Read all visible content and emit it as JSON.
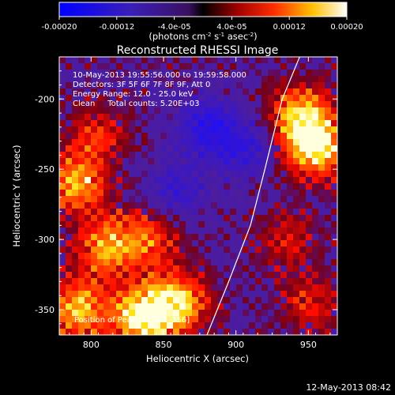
{
  "colorbar": {
    "tick_labels": [
      "-0.00020",
      "-0.00012",
      "-4.0e-05",
      "4.0e-05",
      "0.00012",
      "0.00020"
    ],
    "tick_values": [
      -0.0002,
      -0.00012,
      -4e-05,
      4e-05,
      0.00012,
      0.0002
    ],
    "range": [
      -0.0002,
      0.0002
    ],
    "units_base": "(photons cm",
    "units_sup1": "-2",
    "units_mid": " s",
    "units_sup2": "-1",
    "units_end": " asec",
    "units_sup3": "-2",
    "units_close": ")"
  },
  "chart_data": {
    "type": "heatmap",
    "title": "Reconstructed RHESSI Image",
    "xlabel": "Heliocentric X (arcsec)",
    "ylabel": "Heliocentric Y (arcsec)",
    "xlim": [
      778,
      970
    ],
    "ylim": [
      -368,
      -170
    ],
    "x_ticks": [
      800,
      850,
      900,
      950
    ],
    "y_ticks": [
      -350,
      -300,
      -250,
      -200
    ],
    "x_tick_labels": [
      "800",
      "850",
      "900",
      "950"
    ],
    "y_tick_labels": [
      "-350",
      "-300",
      "-250",
      "-200"
    ],
    "colormap": "blue-purple-red-yellow-white",
    "annotations": [
      "10-May-2013 19:55:56.000 to 19:59:58.000",
      "Detectors: 3F 5F 6F 7F 8F 9F, Att 0",
      "Energy Range: 12.0 - 25.0 keV",
      "Clean     Total counts: 5.20E+03"
    ],
    "peak_label": "Position of Peak = [776 -356]",
    "limb_curve": [
      [
        880,
        -368
      ],
      [
        895,
        -330
      ],
      [
        910,
        -290
      ],
      [
        920,
        -250
      ],
      [
        932,
        -200
      ],
      [
        944,
        -170
      ]
    ],
    "bright_regions": [
      {
        "x": 955,
        "y": -235,
        "intensity": 1.0
      },
      {
        "x": 945,
        "y": -210,
        "intensity": 0.8
      },
      {
        "x": 790,
        "y": -260,
        "intensity": 0.8
      },
      {
        "x": 790,
        "y": -350,
        "intensity": 0.85
      },
      {
        "x": 835,
        "y": -355,
        "intensity": 0.95
      },
      {
        "x": 860,
        "y": -345,
        "intensity": 0.85
      },
      {
        "x": 810,
        "y": -305,
        "intensity": 0.7
      },
      {
        "x": 840,
        "y": -300,
        "intensity": 0.55
      },
      {
        "x": 805,
        "y": -225,
        "intensity": 0.45
      },
      {
        "x": 950,
        "y": -345,
        "intensity": 0.45
      },
      {
        "x": 935,
        "y": -300,
        "intensity": 0.35
      }
    ],
    "dark_regions": [
      {
        "x": 880,
        "y": -220,
        "intensity": 0.7
      },
      {
        "x": 860,
        "y": -265,
        "intensity": 0.5
      },
      {
        "x": 905,
        "y": -235,
        "intensity": 0.55
      }
    ]
  },
  "footer": {
    "date": "12-May-2013 08:42"
  }
}
